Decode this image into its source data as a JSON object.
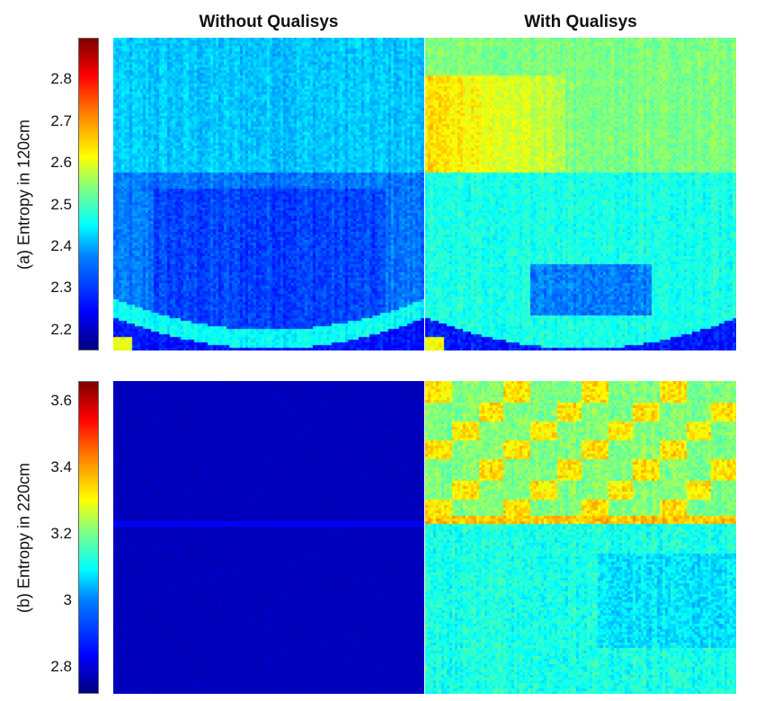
{
  "column_titles": {
    "left": "Without Qualisys",
    "right": "With Qualisys"
  },
  "colormap": "jet",
  "chart_data": [
    {
      "type": "heatmap",
      "ylabel": "(a) Entropy in 120cm",
      "panels": [
        "Without Qualisys",
        "With Qualisys"
      ],
      "colorbar": {
        "ticks": [
          "2.8",
          "2.7",
          "2.6",
          "2.5",
          "2.4",
          "2.3",
          "2.2"
        ],
        "range": [
          2.15,
          2.9
        ]
      },
      "approx_values": {
        "Without Qualisys": {
          "upper_half_mean": 2.4,
          "lower_half_mean": 2.3,
          "bottom_arc": 2.2
        },
        "With Qualisys": {
          "upper_half_mean": 2.55,
          "upper_band_peak": 2.68,
          "lower_half_mean": 2.45,
          "lower_inner_block": 2.32,
          "bottom_arc": 2.2
        }
      }
    },
    {
      "type": "heatmap",
      "ylabel": "(b) Entropy in 220cm",
      "panels": [
        "Without Qualisys",
        "With Qualisys"
      ],
      "colorbar": {
        "ticks": [
          "3.6",
          "3.4",
          "3.2",
          "3",
          "2.8"
        ],
        "range": [
          2.72,
          3.66
        ]
      },
      "approx_values": {
        "Without Qualisys": {
          "mean": 2.76
        },
        "With Qualisys": {
          "upper_half_mean": 3.2,
          "upper_half_peaks": 3.4,
          "lower_half_mean": 3.05
        }
      }
    }
  ]
}
